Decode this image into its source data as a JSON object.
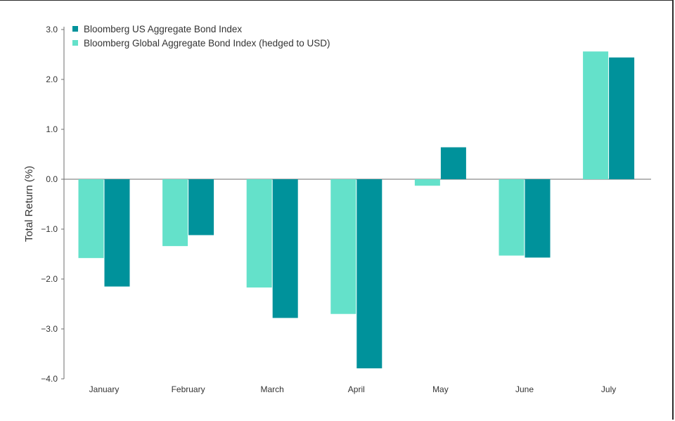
{
  "chart_data": {
    "type": "bar",
    "categories": [
      "January",
      "February",
      "March",
      "April",
      "May",
      "June",
      "July"
    ],
    "series": [
      {
        "name": "Bloomberg Global Aggregate Bond Index (hedged to USD)",
        "color": "#64e1ca",
        "values": [
          -1.58,
          -1.34,
          -2.17,
          -2.7,
          -0.13,
          -1.53,
          2.56
        ]
      },
      {
        "name": "Bloomberg US Aggregate Bond Index",
        "color": "#00929b",
        "values": [
          -2.15,
          -1.12,
          -2.78,
          -3.79,
          0.64,
          -1.57,
          2.44
        ]
      }
    ],
    "legend_order": [
      1,
      0
    ],
    "legend_position": "top-left",
    "title": "",
    "xlabel": "",
    "ylabel": "Total Return (%)",
    "ylim": [
      -4.0,
      3.0
    ],
    "yticks": [
      3.0,
      2.0,
      1.0,
      0.0,
      -1.0,
      -2.0,
      -3.0,
      -4.0
    ],
    "ytick_labels": [
      "3.0",
      "2.0",
      "1.0",
      "0.0",
      "−1.0",
      "−2.0",
      "−3.0",
      "−4.0"
    ],
    "grid": false
  }
}
